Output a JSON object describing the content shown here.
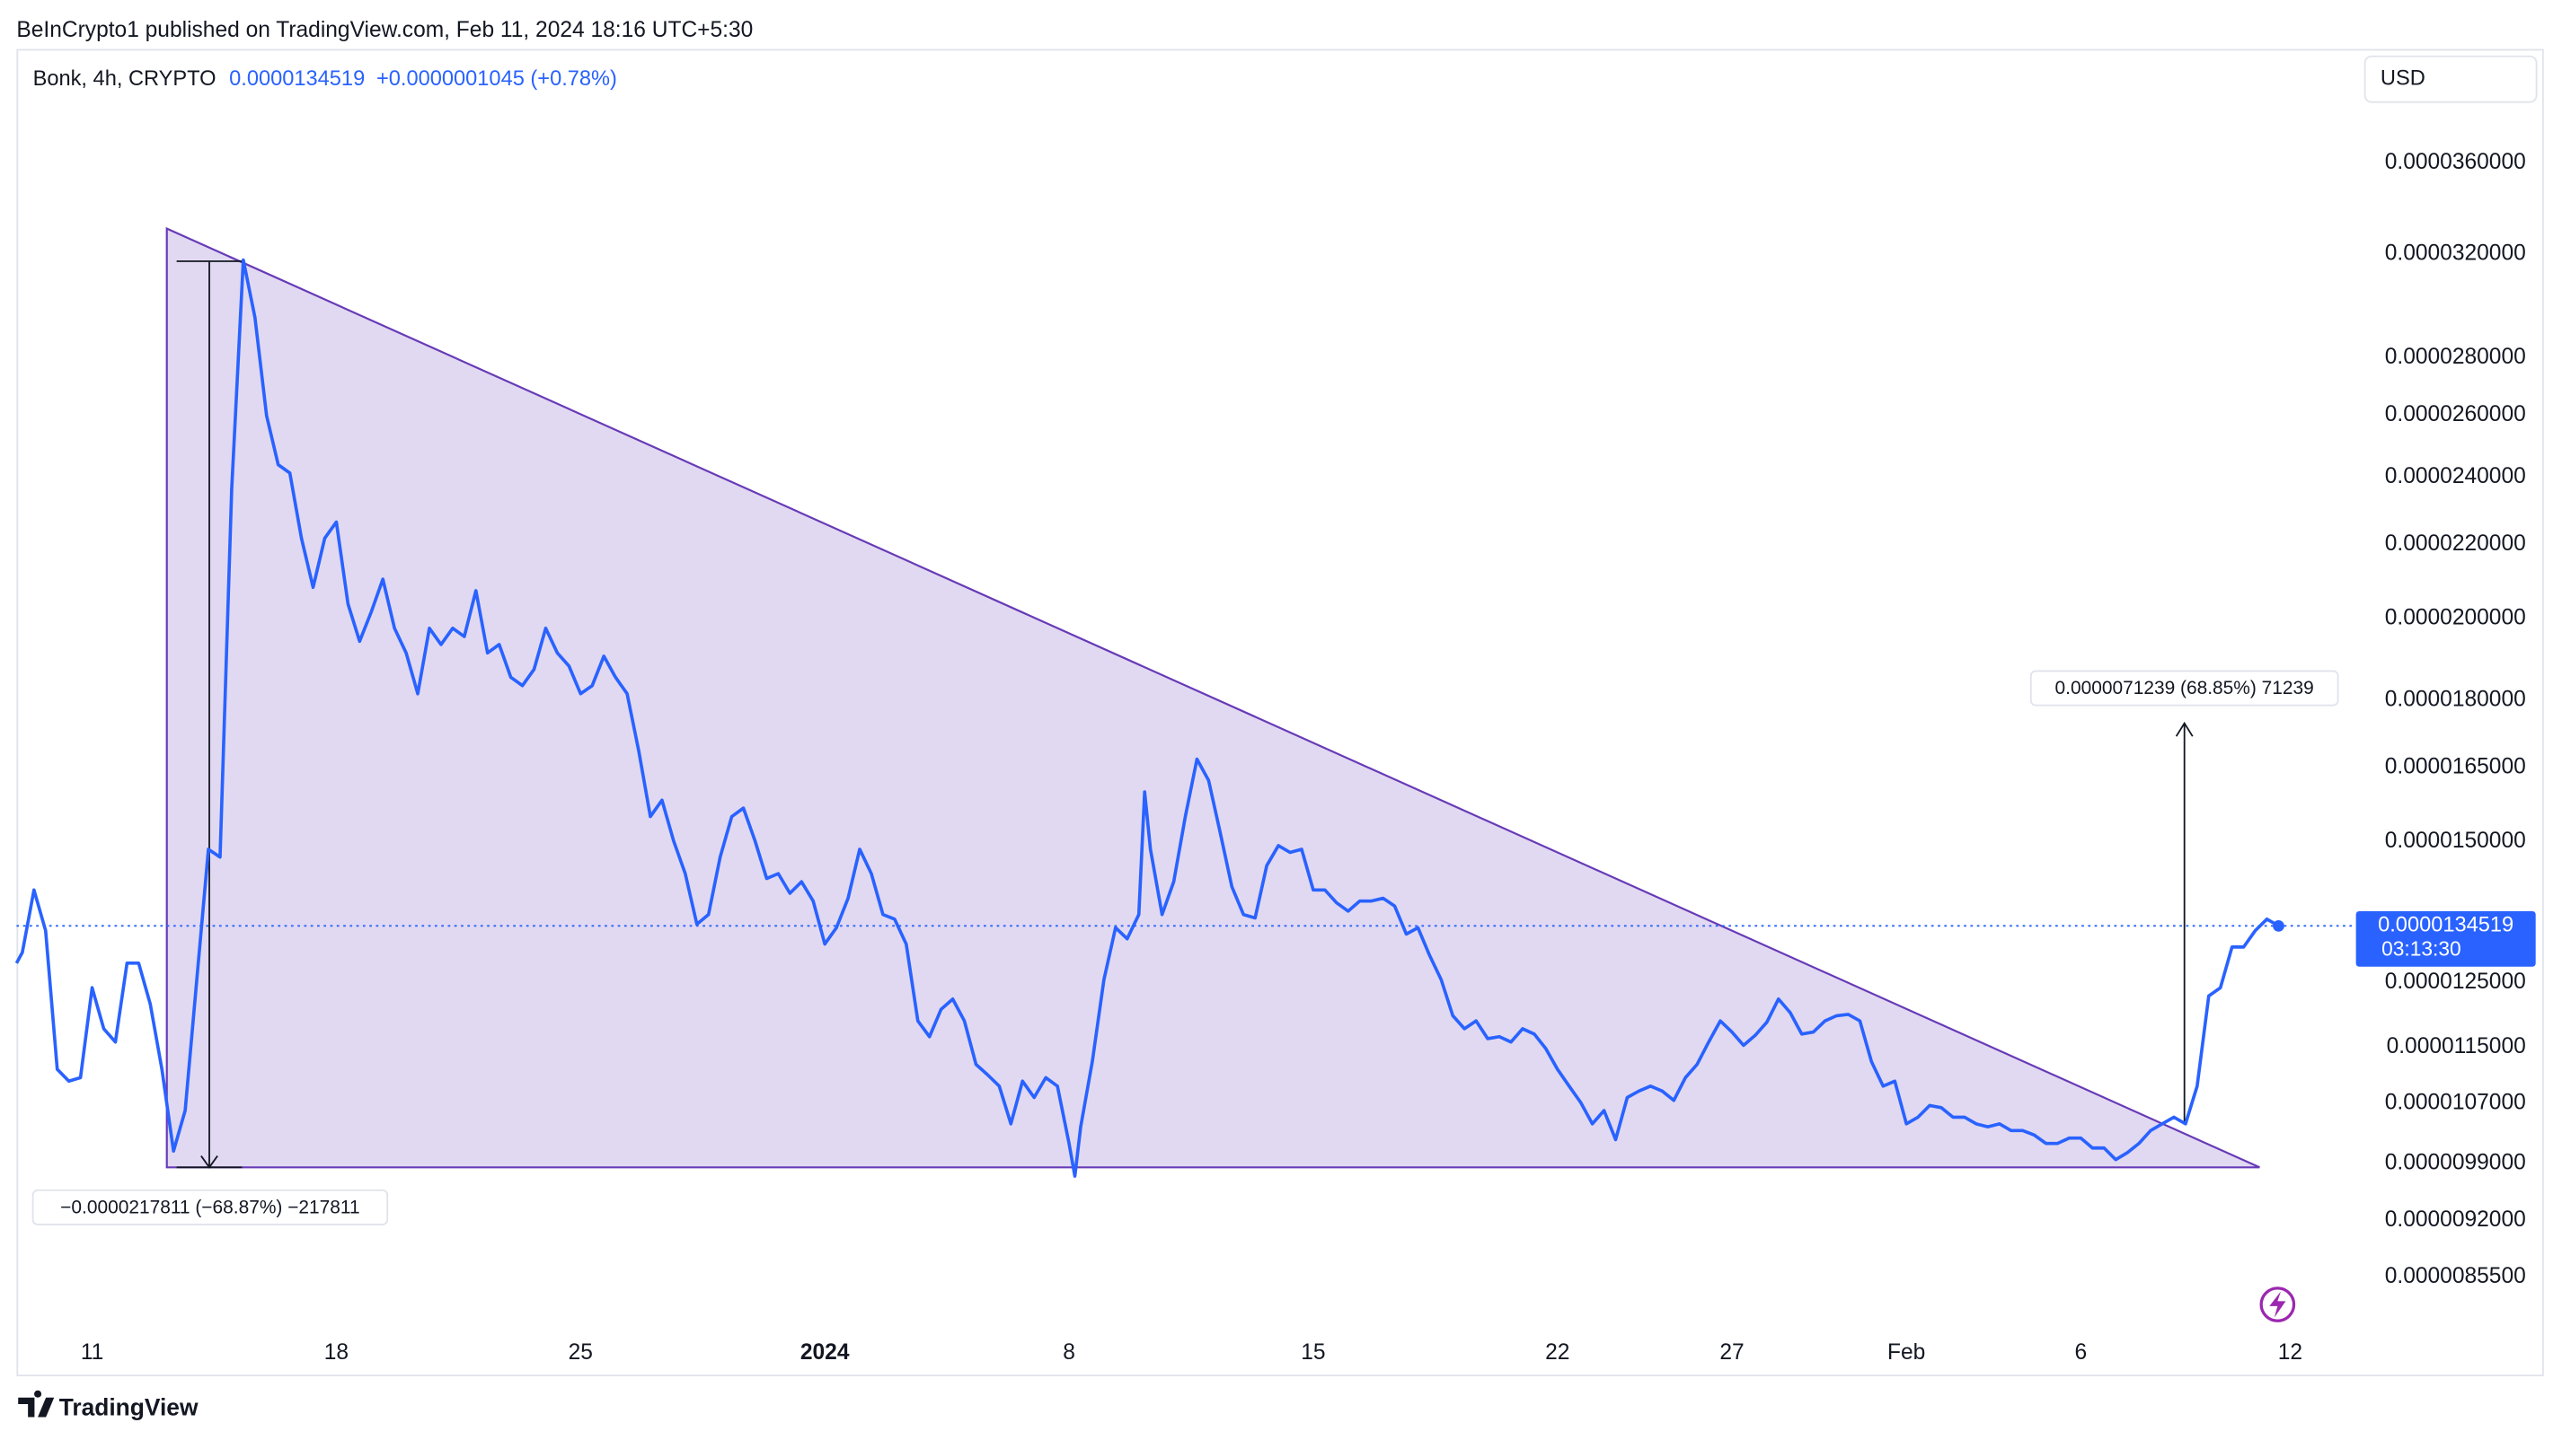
{
  "published_by": "BeInCrypto1 published on TradingView.com, Feb 11, 2024 18:16 UTC+5:30",
  "symbol": "Bonk, 4h, CRYPTO",
  "currency": "USD",
  "brand": "TradingView",
  "chart_data": {
    "type": "line",
    "log_scale": true,
    "grid": false,
    "color": "#2962ff",
    "last_price": 1.34519e-05,
    "change": "+0.0000001045 (+0.78%)",
    "countdown": "03:13:30",
    "annotations": [
      "−0.0000217811 (−68.87%) −217811",
      "0.0000071239 (68.85%) 71239"
    ],
    "xlim": [
      "2023-12-08T20:00",
      "2024-02-13T19:00"
    ],
    "xticks": [
      {
        "value": "2023-12-11T00:00",
        "label": "11"
      },
      {
        "value": "2023-12-18T00:00",
        "label": "18"
      },
      {
        "value": "2023-12-25T00:00",
        "label": "25"
      },
      {
        "value": "2024-01-01T00:00",
        "label": "2024"
      },
      {
        "value": "2024-01-08T00:00",
        "label": "8"
      },
      {
        "value": "2024-01-15T00:00",
        "label": "15"
      },
      {
        "value": "2024-01-22T00:00",
        "label": "22"
      },
      {
        "value": "2024-01-27T00:00",
        "label": "27"
      },
      {
        "value": "2024-02-01T00:00",
        "label": "Feb"
      },
      {
        "value": "2024-02-06T00:00",
        "label": "6"
      },
      {
        "value": "2024-02-12T00:00",
        "label": "12"
      }
    ],
    "ylim": [
      7.98e-06,
      4.17e-05
    ],
    "yticks": [
      {
        "value": 3.6e-05,
        "label": "0.0000360000"
      },
      {
        "value": 3.2e-05,
        "label": "0.0000320000"
      },
      {
        "value": 2.8e-05,
        "label": "0.0000280000"
      },
      {
        "value": 2.6e-05,
        "label": "0.0000260000"
      },
      {
        "value": 2.4e-05,
        "label": "0.0000240000"
      },
      {
        "value": 2.2e-05,
        "label": "0.0000220000"
      },
      {
        "value": 2e-05,
        "label": "0.0000200000"
      },
      {
        "value": 1.8e-05,
        "label": "0.0000180000"
      },
      {
        "value": 1.65e-05,
        "label": "0.0000165000"
      },
      {
        "value": 1.5e-05,
        "label": "0.0000150000"
      },
      {
        "value": 1.25e-05,
        "label": "0.0000125000"
      },
      {
        "value": 1.15e-05,
        "label": "0.0000115000"
      },
      {
        "value": 1.07e-05,
        "label": "0.0000107000"
      },
      {
        "value": 9.9e-06,
        "label": "0.0000099000"
      },
      {
        "value": 9.2e-06,
        "label": "0.0000092000"
      },
      {
        "value": 8.55e-06,
        "label": "0.0000085500"
      }
    ],
    "x": [
      "2023-12-08T20:00",
      "2023-12-09T00:00",
      "2023-12-09T08:00",
      "2023-12-09T16:00",
      "2023-12-10T00:00",
      "2023-12-10T08:00",
      "2023-12-10T16:00",
      "2023-12-11T00:00",
      "2023-12-11T08:00",
      "2023-12-11T16:00",
      "2023-12-12T00:00",
      "2023-12-12T08:00",
      "2023-12-12T16:00",
      "2023-12-13T00:00",
      "2023-12-13T08:00",
      "2023-12-13T16:00",
      "2023-12-14T00:00",
      "2023-12-14T08:00",
      "2023-12-14T16:00",
      "2023-12-15T00:00",
      "2023-12-15T08:00",
      "2023-12-15T16:00",
      "2023-12-16T00:00",
      "2023-12-16T08:00",
      "2023-12-16T16:00",
      "2023-12-17T00:00",
      "2023-12-17T08:00",
      "2023-12-17T16:00",
      "2023-12-18T00:00",
      "2023-12-18T08:00",
      "2023-12-18T16:00",
      "2023-12-19T00:00",
      "2023-12-19T08:00",
      "2023-12-19T16:00",
      "2023-12-20T00:00",
      "2023-12-20T08:00",
      "2023-12-20T16:00",
      "2023-12-21T00:00",
      "2023-12-21T08:00",
      "2023-12-21T16:00",
      "2023-12-22T00:00",
      "2023-12-22T08:00",
      "2023-12-22T16:00",
      "2023-12-23T00:00",
      "2023-12-23T08:00",
      "2023-12-23T16:00",
      "2023-12-24T00:00",
      "2023-12-24T08:00",
      "2023-12-24T16:00",
      "2023-12-25T00:00",
      "2023-12-25T08:00",
      "2023-12-25T16:00",
      "2023-12-26T00:00",
      "2023-12-26T08:00",
      "2023-12-26T16:00",
      "2023-12-27T00:00",
      "2023-12-27T08:00",
      "2023-12-27T16:00",
      "2023-12-28T00:00",
      "2023-12-28T08:00",
      "2023-12-28T16:00",
      "2023-12-29T00:00",
      "2023-12-29T08:00",
      "2023-12-29T16:00",
      "2023-12-30T00:00",
      "2023-12-30T08:00",
      "2023-12-30T16:00",
      "2023-12-31T00:00",
      "2023-12-31T08:00",
      "2023-12-31T16:00",
      "2024-01-01T00:00",
      "2024-01-01T08:00",
      "2024-01-01T16:00",
      "2024-01-02T00:00",
      "2024-01-02T08:00",
      "2024-01-02T16:00",
      "2024-01-03T00:00",
      "2024-01-03T08:00",
      "2024-01-03T16:00",
      "2024-01-04T00:00",
      "2024-01-04T08:00",
      "2024-01-04T16:00",
      "2024-01-05T00:00",
      "2024-01-05T08:00",
      "2024-01-05T16:00",
      "2024-01-06T00:00",
      "2024-01-06T08:00",
      "2024-01-06T16:00",
      "2024-01-07T00:00",
      "2024-01-07T08:00",
      "2024-01-07T16:00",
      "2024-01-08T00:00",
      "2024-01-08T04:00",
      "2024-01-08T08:00",
      "2024-01-08T16:00",
      "2024-01-09T00:00",
      "2024-01-09T08:00",
      "2024-01-09T16:00",
      "2024-01-10T00:00",
      "2024-01-10T04:00",
      "2024-01-10T08:00",
      "2024-01-10T16:00",
      "2024-01-11T00:00",
      "2024-01-11T08:00",
      "2024-01-11T16:00",
      "2024-01-12T00:00",
      "2024-01-12T08:00",
      "2024-01-12T16:00",
      "2024-01-13T00:00",
      "2024-01-13T08:00",
      "2024-01-13T16:00",
      "2024-01-14T00:00",
      "2024-01-14T08:00",
      "2024-01-14T16:00",
      "2024-01-15T00:00",
      "2024-01-15T08:00",
      "2024-01-15T16:00",
      "2024-01-16T00:00",
      "2024-01-16T08:00",
      "2024-01-16T16:00",
      "2024-01-17T00:00",
      "2024-01-17T08:00",
      "2024-01-17T16:00",
      "2024-01-18T00:00",
      "2024-01-18T08:00",
      "2024-01-18T16:00",
      "2024-01-19T00:00",
      "2024-01-19T08:00",
      "2024-01-19T16:00",
      "2024-01-20T00:00",
      "2024-01-20T08:00",
      "2024-01-20T16:00",
      "2024-01-21T00:00",
      "2024-01-21T08:00",
      "2024-01-21T16:00",
      "2024-01-22T00:00",
      "2024-01-22T08:00",
      "2024-01-22T16:00",
      "2024-01-23T00:00",
      "2024-01-23T08:00",
      "2024-01-23T16:00",
      "2024-01-24T00:00",
      "2024-01-24T08:00",
      "2024-01-24T16:00",
      "2024-01-25T00:00",
      "2024-01-25T08:00",
      "2024-01-25T16:00",
      "2024-01-26T00:00",
      "2024-01-26T08:00",
      "2024-01-26T16:00",
      "2024-01-27T00:00",
      "2024-01-27T08:00",
      "2024-01-27T16:00",
      "2024-01-28T00:00",
      "2024-01-28T08:00",
      "2024-01-28T16:00",
      "2024-01-29T00:00",
      "2024-01-29T08:00",
      "2024-01-29T16:00",
      "2024-01-30T00:00",
      "2024-01-30T08:00",
      "2024-01-30T16:00",
      "2024-01-31T00:00",
      "2024-01-31T08:00",
      "2024-01-31T16:00",
      "2024-02-01T00:00",
      "2024-02-01T08:00",
      "2024-02-01T16:00",
      "2024-02-02T00:00",
      "2024-02-02T08:00",
      "2024-02-02T16:00",
      "2024-02-03T00:00",
      "2024-02-03T08:00",
      "2024-02-03T16:00",
      "2024-02-04T00:00",
      "2024-02-04T08:00",
      "2024-02-04T16:00",
      "2024-02-05T00:00",
      "2024-02-05T08:00",
      "2024-02-05T16:00",
      "2024-02-06T00:00",
      "2024-02-06T08:00",
      "2024-02-06T16:00",
      "2024-02-07T00:00",
      "2024-02-07T08:00",
      "2024-02-07T16:00",
      "2024-02-08T00:00",
      "2024-02-08T08:00",
      "2024-02-08T16:00",
      "2024-02-09T00:00",
      "2024-02-09T08:00",
      "2024-02-09T16:00",
      "2024-02-10T00:00",
      "2024-02-10T08:00",
      "2024-02-10T16:00",
      "2024-02-11T00:00",
      "2024-02-11T08:00",
      "2024-02-11T16:00"
    ],
    "values": [
      1.282e-05,
      1.3e-05,
      1.409e-05,
      1.337e-05,
      1.118e-05,
      1.101e-05,
      1.106e-05,
      1.242e-05,
      1.178e-05,
      1.158e-05,
      1.282e-05,
      1.282e-05,
      1.216e-05,
      1.118e-05,
      1.006e-05,
      1.06e-05,
      1.255e-05,
      1.485e-05,
      1.47e-05,
      2.363e-05,
      3.176e-05,
      2.949e-05,
      2.598e-05,
      2.439e-05,
      2.413e-05,
      2.218e-05,
      2.082e-05,
      2.218e-05,
      2.265e-05,
      2.038e-05,
      1.942e-05,
      2.017e-05,
      2.104e-05,
      1.975e-05,
      1.913e-05,
      1.815e-05,
      1.975e-05,
      1.934e-05,
      1.975e-05,
      1.954e-05,
      2.073e-05,
      1.913e-05,
      1.934e-05,
      1.854e-05,
      1.834e-05,
      1.873e-05,
      1.975e-05,
      1.913e-05,
      1.881e-05,
      1.815e-05,
      1.834e-05,
      1.905e-05,
      1.854e-05,
      1.815e-05,
      1.686e-05,
      1.549e-05,
      1.582e-05,
      1.501e-05,
      1.439e-05,
      1.348e-05,
      1.365e-05,
      1.47e-05,
      1.549e-05,
      1.566e-05,
      1.501e-05,
      1.43e-05,
      1.439e-05,
      1.403e-05,
      1.424e-05,
      1.389e-05,
      1.314e-05,
      1.342e-05,
      1.394e-05,
      1.485e-05,
      1.439e-05,
      1.365e-05,
      1.357e-05,
      1.314e-05,
      1.19e-05,
      1.166e-05,
      1.208e-05,
      1.224e-05,
      1.19e-05,
      1.125e-05,
      1.11e-05,
      1.094e-05,
      1.042e-05,
      1.101e-05,
      1.078e-05,
      1.106e-05,
      1.094e-05,
      1.016e-05,
      9.74e-06,
      1.038e-05,
      1.129e-05,
      1.255e-05,
      1.342e-05,
      1.323e-05,
      1.365e-05,
      1.599e-05,
      1.485e-05,
      1.365e-05,
      1.424e-05,
      1.549e-05,
      1.668e-05,
      1.623e-05,
      1.517e-05,
      1.415e-05,
      1.365e-05,
      1.359e-05,
      1.454e-05,
      1.492e-05,
      1.479e-05,
      1.485e-05,
      1.409e-05,
      1.409e-05,
      1.386e-05,
      1.371e-05,
      1.389e-05,
      1.389e-05,
      1.394e-05,
      1.38e-05,
      1.331e-05,
      1.342e-05,
      1.295e-05,
      1.255e-05,
      1.198e-05,
      1.178e-05,
      1.19e-05,
      1.163e-05,
      1.166e-05,
      1.158e-05,
      1.178e-05,
      1.17e-05,
      1.148e-05,
      1.118e-05,
      1.094e-05,
      1.071e-05,
      1.042e-05,
      1.06e-05,
      1.021e-05,
      1.078e-05,
      1.087e-05,
      1.094e-05,
      1.087e-05,
      1.074e-05,
      1.106e-05,
      1.125e-05,
      1.158e-05,
      1.19e-05,
      1.173e-05,
      1.153e-05,
      1.168e-05,
      1.188e-05,
      1.224e-05,
      1.203e-05,
      1.17e-05,
      1.173e-05,
      1.19e-05,
      1.198e-05,
      1.2e-05,
      1.19e-05,
      1.129e-05,
      1.094e-05,
      1.101e-05,
      1.042e-05,
      1.051e-05,
      1.067e-05,
      1.064e-05,
      1.051e-05,
      1.051e-05,
      1.042e-05,
      1.038e-05,
      1.042e-05,
      1.033e-05,
      1.033e-05,
      1.027e-05,
      1.016e-05,
      1.016e-05,
      1.023e-05,
      1.023e-05,
      1.01e-05,
      1.01e-05,
      9.95e-06,
      1.004e-05,
      1.016e-05,
      1.033e-05,
      1.042e-05,
      1.051e-05,
      1.042e-05,
      1.094e-05,
      1.229e-05,
      1.242e-05,
      1.309e-05,
      1.309e-05,
      1.337e-05,
      1.357e-05,
      1.34519e-05
    ]
  }
}
